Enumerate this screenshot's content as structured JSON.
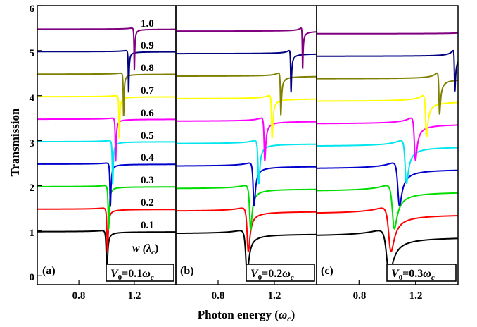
{
  "figure": {
    "ylabel": "Transmission",
    "xlabel_main": "Photon energy (",
    "xlabel_sym": "ω",
    "xlabel_sub": "c",
    "xlabel_close": ")"
  },
  "chart_data": [
    {
      "type": "line",
      "panel_label": "(a)",
      "annotation": {
        "sym": "V",
        "sub": "0",
        "eq": "=0.1",
        "omega": "ω",
        "osub": "c"
      },
      "params": {
        "V0": 0.1
      },
      "xlim": [
        0.5,
        1.5
      ],
      "ylim": [
        -0.2,
        6.0
      ],
      "xticks": [
        0.8,
        1.2
      ],
      "yticks": [
        0,
        1,
        2,
        3,
        4,
        5,
        6
      ],
      "x_ticklabels": [
        "0.8",
        "1.2"
      ],
      "y_ticklabels": [
        "0",
        "1",
        "2",
        "3",
        "4",
        "5",
        "6"
      ],
      "curve_labels": [
        "1.0",
        "0.9",
        "0.8",
        "0.7",
        "0.6",
        "0.5",
        "0.4",
        "0.3",
        "0.2",
        "0.1"
      ],
      "w_label": {
        "main": "w (",
        "sym": "λ",
        "sub": "c",
        "close": ")"
      }
    },
    {
      "type": "line",
      "panel_label": "(b)",
      "annotation": {
        "sym": "V",
        "sub": "0",
        "eq": "=0.2",
        "omega": "ω",
        "osub": "c"
      },
      "params": {
        "V0": 0.2
      },
      "xlim": [
        0.5,
        1.5
      ],
      "ylim": [
        -0.2,
        6.0
      ],
      "xticks": [
        0.8,
        1.2
      ],
      "x_ticklabels": [
        "0.8",
        "1.2"
      ]
    },
    {
      "type": "line",
      "panel_label": "(c)",
      "annotation": {
        "sym": "V",
        "sub": "0",
        "eq": "=0.3",
        "omega": "ω",
        "osub": "c"
      },
      "params": {
        "V0": 0.3
      },
      "xlim": [
        0.5,
        1.5
      ],
      "ylim": [
        -0.2,
        6.0
      ],
      "xticks": [
        0.8,
        1.2
      ],
      "x_ticklabels": [
        "0.8",
        "1.2"
      ]
    }
  ],
  "series": [
    {
      "w": 0.1,
      "offset": 0.0,
      "color": "#000000"
    },
    {
      "w": 0.2,
      "offset": 0.5,
      "color": "#ff0000"
    },
    {
      "w": 0.3,
      "offset": 1.0,
      "color": "#00dd00"
    },
    {
      "w": 0.4,
      "offset": 1.5,
      "color": "#0000cc"
    },
    {
      "w": 0.5,
      "offset": 2.0,
      "color": "#00e5ee"
    },
    {
      "w": 0.6,
      "offset": 2.5,
      "color": "#ff00ff"
    },
    {
      "w": 0.7,
      "offset": 3.0,
      "color": "#ffff00"
    },
    {
      "w": 0.8,
      "offset": 3.5,
      "color": "#808000"
    },
    {
      "w": 0.9,
      "offset": 4.0,
      "color": "#000080"
    },
    {
      "w": 1.0,
      "offset": 4.5,
      "color": "#800080"
    }
  ]
}
